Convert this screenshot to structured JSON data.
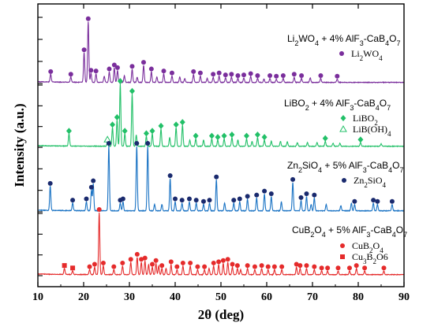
{
  "chart_data": {
    "type": "line",
    "xlabel": "2θ (deg)",
    "ylabel": "Intensity (a.u.)",
    "xlim": [
      10,
      90
    ],
    "xticks": [
      "10",
      "20",
      "30",
      "40",
      "50",
      "60",
      "70",
      "80",
      "90"
    ],
    "grid": false,
    "series": [
      {
        "name": "Li2WO4 + 4% AlF3-CaB4O7",
        "color": "#7a2e9c",
        "peaks": [
          [
            12.8,
            12
          ],
          [
            17.2,
            8
          ],
          [
            20.1,
            45
          ],
          [
            21.0,
            92
          ],
          [
            21.6,
            14
          ],
          [
            22.7,
            13
          ],
          [
            24.5,
            9
          ],
          [
            25.6,
            16
          ],
          [
            26.7,
            22
          ],
          [
            27.4,
            18
          ],
          [
            28.9,
            10
          ],
          [
            30.6,
            20
          ],
          [
            31.7,
            8
          ],
          [
            33.1,
            26
          ],
          [
            34.8,
            16
          ],
          [
            36.0,
            8
          ],
          [
            37.5,
            13
          ],
          [
            39.3,
            10
          ],
          [
            41.0,
            8
          ],
          [
            42.1,
            6
          ],
          [
            44.0,
            12
          ],
          [
            45.5,
            10
          ],
          [
            47.0,
            6
          ],
          [
            48.3,
            8
          ],
          [
            49.6,
            10
          ],
          [
            51.0,
            7
          ],
          [
            52.3,
            8
          ],
          [
            53.7,
            6
          ],
          [
            55.0,
            7
          ],
          [
            56.5,
            9
          ],
          [
            58.0,
            6
          ],
          [
            59.4,
            5
          ],
          [
            60.7,
            6
          ],
          [
            62.1,
            5
          ],
          [
            63.6,
            6
          ],
          [
            66.0,
            8
          ],
          [
            67.6,
            6
          ],
          [
            69.5,
            7
          ],
          [
            71.8,
            6
          ],
          [
            75.4,
            5
          ]
        ],
        "markers": [
          {
            "symbol": "circle",
            "x": [
              12.8,
              17.2,
              20.1,
              21.0,
              21.6,
              22.7,
              25.6,
              26.7,
              27.4,
              30.6,
              33.1,
              34.8,
              37.5,
              39.3,
              44.0,
              45.5,
              48.3,
              49.6,
              51.0,
              52.3,
              53.7,
              55.0,
              56.5,
              58.0,
              60.7,
              62.1,
              63.6,
              66.0,
              67.6,
              71.8,
              75.4
            ]
          }
        ]
      },
      {
        "name": "LiBO2 + 4% AlF3-CaB4O7",
        "color": "#22c068",
        "peaks": [
          [
            16.8,
            20
          ],
          [
            25.2,
            6
          ],
          [
            26.3,
            30
          ],
          [
            27.3,
            42
          ],
          [
            28.0,
            100
          ],
          [
            29.0,
            20
          ],
          [
            30.6,
            84
          ],
          [
            31.5,
            18
          ],
          [
            33.7,
            16
          ],
          [
            35.0,
            20
          ],
          [
            36.9,
            28
          ],
          [
            38.8,
            14
          ],
          [
            40.2,
            30
          ],
          [
            41.6,
            34
          ],
          [
            43.2,
            10
          ],
          [
            44.5,
            12
          ],
          [
            46.2,
            10
          ],
          [
            48.0,
            12
          ],
          [
            49.3,
            10
          ],
          [
            50.7,
            12
          ],
          [
            52.4,
            14
          ],
          [
            53.7,
            10
          ],
          [
            55.6,
            12
          ],
          [
            56.8,
            8
          ],
          [
            58.0,
            14
          ],
          [
            59.5,
            10
          ],
          [
            61.0,
            8
          ],
          [
            63.0,
            8
          ],
          [
            64.5,
            7
          ],
          [
            66.7,
            6
          ],
          [
            68.9,
            6
          ],
          [
            71.0,
            6
          ],
          [
            72.8,
            8
          ],
          [
            74.5,
            5
          ],
          [
            76.0,
            5
          ],
          [
            80.5,
            6
          ],
          [
            85.0,
            4
          ]
        ],
        "markers": [
          {
            "symbol": "diamond",
            "x": [
              16.8,
              26.3,
              27.3,
              28.0,
              29.0,
              30.6,
              33.7,
              35.0,
              36.9,
              40.2,
              41.6,
              44.5,
              48.0,
              49.3,
              50.7,
              52.4,
              55.6,
              58.0,
              59.5,
              72.8,
              80.5
            ]
          },
          {
            "symbol": "triangle-open",
            "x": [
              25.2
            ]
          }
        ]
      },
      {
        "name": "Zn2SiO4 + 5% AlF3-CaB4O7",
        "color": "#1a73c4",
        "peaks": [
          [
            12.7,
            38
          ],
          [
            17.6,
            12
          ],
          [
            20.6,
            14
          ],
          [
            21.7,
            32
          ],
          [
            22.1,
            42
          ],
          [
            25.5,
            100
          ],
          [
            28.0,
            12
          ],
          [
            28.6,
            14
          ],
          [
            31.6,
            100
          ],
          [
            34.0,
            100
          ],
          [
            35.5,
            10
          ],
          [
            37.1,
            10
          ],
          [
            38.9,
            50
          ],
          [
            40.0,
            14
          ],
          [
            41.5,
            12
          ],
          [
            43.1,
            14
          ],
          [
            44.6,
            12
          ],
          [
            46.2,
            10
          ],
          [
            47.5,
            12
          ],
          [
            49.0,
            48
          ],
          [
            50.8,
            12
          ],
          [
            52.8,
            12
          ],
          [
            54.1,
            14
          ],
          [
            55.8,
            18
          ],
          [
            57.8,
            20
          ],
          [
            59.5,
            26
          ],
          [
            61.0,
            22
          ],
          [
            63.2,
            14
          ],
          [
            65.7,
            44
          ],
          [
            67.5,
            16
          ],
          [
            68.7,
            22
          ],
          [
            69.7,
            10
          ],
          [
            70.4,
            20
          ],
          [
            73.0,
            10
          ],
          [
            76.2,
            8
          ],
          [
            78.5,
            12
          ],
          [
            79.2,
            10
          ],
          [
            83.3,
            12
          ],
          [
            84.2,
            10
          ],
          [
            87.4,
            10
          ]
        ],
        "markers": [
          {
            "symbol": "circle",
            "x": [
              12.7,
              17.6,
              20.6,
              21.7,
              22.1,
              25.5,
              28.0,
              28.6,
              31.6,
              34.0,
              38.9,
              40.0,
              41.5,
              43.1,
              44.6,
              46.2,
              47.5,
              49.0,
              52.8,
              54.1,
              55.8,
              57.8,
              59.5,
              61.0,
              65.7,
              67.5,
              68.7,
              70.4,
              79.2,
              83.3,
              84.2,
              87.4
            ]
          }
        ]
      },
      {
        "name": "CuB2O4 + 5% AlF3-CaB4O7",
        "color": "#e52b2b",
        "peaks": [
          [
            15.8,
            10
          ],
          [
            17.6,
            6
          ],
          [
            21.3,
            8
          ],
          [
            22.4,
            12
          ],
          [
            23.4,
            100
          ],
          [
            24.3,
            14
          ],
          [
            26.6,
            8
          ],
          [
            28.5,
            14
          ],
          [
            30.3,
            20
          ],
          [
            31.7,
            28
          ],
          [
            32.6,
            20
          ],
          [
            33.4,
            22
          ],
          [
            34.2,
            16
          ],
          [
            35.0,
            12
          ],
          [
            35.8,
            18
          ],
          [
            36.4,
            14
          ],
          [
            37.1,
            10
          ],
          [
            38.0,
            10
          ],
          [
            39.1,
            16
          ],
          [
            40.4,
            8
          ],
          [
            41.7,
            14
          ],
          [
            43.3,
            14
          ],
          [
            44.9,
            8
          ],
          [
            46.4,
            8
          ],
          [
            47.4,
            10
          ],
          [
            48.4,
            14
          ],
          [
            49.5,
            16
          ],
          [
            50.5,
            18
          ],
          [
            51.5,
            20
          ],
          [
            52.5,
            12
          ],
          [
            53.6,
            10
          ],
          [
            54.3,
            8
          ],
          [
            55.8,
            10
          ],
          [
            57.4,
            8
          ],
          [
            58.9,
            10
          ],
          [
            60.3,
            8
          ],
          [
            61.7,
            8
          ],
          [
            63.3,
            8
          ],
          [
            66.5,
            12
          ],
          [
            67.3,
            10
          ],
          [
            68.7,
            10
          ],
          [
            70.4,
            8
          ],
          [
            72.0,
            6
          ],
          [
            73.3,
            6
          ],
          [
            75.6,
            6
          ],
          [
            78.1,
            6
          ],
          [
            79.6,
            10
          ],
          [
            81.4,
            6
          ],
          [
            85.6,
            6
          ]
        ],
        "markers": [
          {
            "symbol": "circle",
            "x": [
              21.3,
              22.4,
              23.4,
              24.3,
              26.6,
              28.5,
              30.3,
              31.7,
              32.6,
              33.4,
              35.0,
              35.8,
              37.1,
              39.1,
              40.4,
              41.7,
              43.3,
              44.9,
              46.4,
              48.4,
              49.5,
              50.5,
              51.5,
              52.5,
              53.6,
              55.8,
              57.4,
              58.9,
              60.3,
              61.7,
              63.3,
              66.5,
              67.3,
              68.7,
              70.4,
              72.0,
              73.3,
              75.6,
              78.1,
              79.6,
              81.4,
              85.6
            ]
          },
          {
            "symbol": "square",
            "x": [
              15.8,
              17.6
            ]
          }
        ]
      }
    ],
    "legend_entries": [
      {
        "symbol": "circle",
        "color": "#7a2e9c",
        "parts": [
          "Li",
          "2",
          "WO",
          "4",
          ""
        ]
      },
      {
        "symbol": "diamond",
        "color": "#22c068",
        "parts": [
          "LiBO",
          "2",
          "",
          "",
          ""
        ]
      },
      {
        "symbol": "triangle-open",
        "color": "#22c068",
        "parts": [
          "LiB(OH)",
          "4",
          "",
          "",
          ""
        ]
      },
      {
        "symbol": "circle",
        "color": "#1a2a6e",
        "parts": [
          "Zn",
          "2",
          "SiO",
          "4",
          ""
        ]
      },
      {
        "symbol": "circle",
        "color": "#e52b2b",
        "parts": [
          "CuB",
          "2",
          "O",
          "4",
          ""
        ]
      },
      {
        "symbol": "square",
        "color": "#e52b2b",
        "parts": [
          "Cu",
          "3",
          "B",
          "2",
          "O6"
        ]
      }
    ],
    "panel_titles": [
      {
        "parts": [
          "Li",
          "2",
          "WO",
          "4",
          " + 4% AlF",
          "3",
          "-CaB",
          "4",
          "O",
          "7"
        ]
      },
      {
        "parts": [
          "LiBO",
          "2",
          " + 4% AlF",
          "3",
          "-CaB",
          "4",
          "O",
          "7",
          "",
          ""
        ]
      },
      {
        "parts": [
          "Zn",
          "2",
          "SiO",
          "4",
          " + 5% AlF",
          "3",
          "-CaB",
          "4",
          "O",
          "7"
        ]
      },
      {
        "parts": [
          "CuB",
          "2",
          "O",
          "4",
          " + 5% AlF",
          "3",
          "-CaB",
          "4",
          "O",
          "7"
        ]
      }
    ]
  }
}
